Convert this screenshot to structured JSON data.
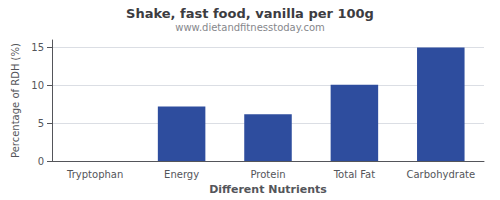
{
  "chart_data": {
    "type": "bar",
    "title": "Shake, fast food, vanilla per 100g",
    "subtitle": "www.dietandfitnesstoday.com",
    "xlabel": "Different Nutrients",
    "ylabel": "Percentage of RDH (%)",
    "categories": [
      "Tryptophan",
      "Energy",
      "Protein",
      "Total Fat",
      "Carbohydrate"
    ],
    "values": [
      0,
      7.2,
      6.2,
      10.1,
      15.0
    ],
    "color": "#2e4d9e",
    "ylim": [
      0,
      16
    ],
    "yticks": [
      0,
      5,
      10,
      15
    ],
    "grid": true
  }
}
